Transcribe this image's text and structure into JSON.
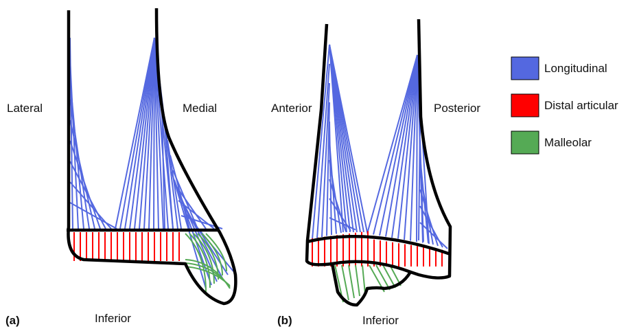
{
  "panel_a": {
    "label": "(a)",
    "left": "Lateral",
    "right": "Medial",
    "bottom": "Inferior"
  },
  "panel_b": {
    "label": "(b)",
    "left": "Anterior",
    "right": "Posterior",
    "bottom": "Inferior"
  },
  "legend": [
    {
      "name": "Longitudinal",
      "color": "#5468e0"
    },
    {
      "name": "Distal articular",
      "color": "#ff0000"
    },
    {
      "name": "Malleolar",
      "color": "#55aa55"
    }
  ]
}
